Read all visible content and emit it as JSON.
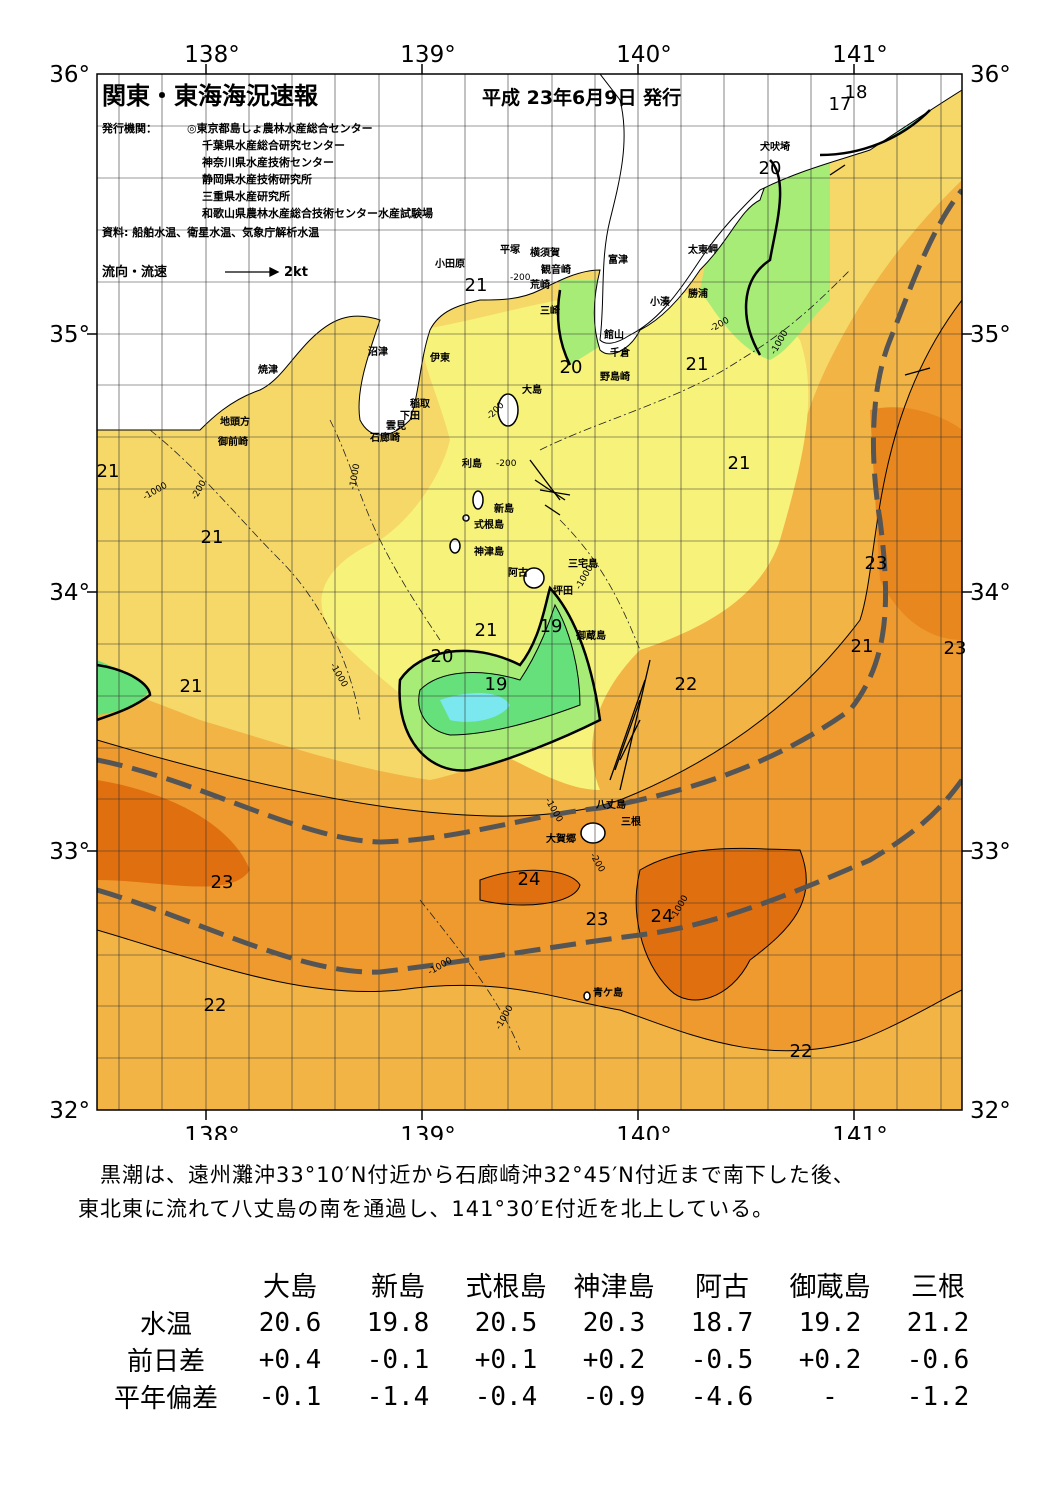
{
  "header": {
    "title": "関東・東海海況速報",
    "date": "平成 23年6月9日 発行",
    "issuer_label": "発行機関：",
    "issuers": [
      "◎東京都島しょ農林水産総合センター",
      "千葉県水産総合研究センター",
      "神奈川県水産技術センター",
      "静岡県水産技術研究所",
      "三重県水産研究所",
      "和歌山県農林水産総合技術センター水産試験場"
    ],
    "source": "資料: 船舶水温、衛星水温、気象庁解析水温",
    "legend_label": "流向・流速",
    "legend_speed": "2kt"
  },
  "axes": {
    "lon_labels": [
      "138°",
      "139°",
      "140°",
      "141°"
    ],
    "lat_labels": [
      "36°",
      "35°",
      "34°",
      "33°",
      "32°"
    ]
  },
  "places": [
    "犬吠埼",
    "太東岬",
    "勝浦",
    "小湊",
    "富津",
    "館山",
    "千倉",
    "野島崎",
    "横須賀",
    "観音崎",
    "荒崎",
    "三崎",
    "平塚",
    "小田原",
    "沼津",
    "伊東",
    "焼津",
    "稲取",
    "下田",
    "雲見",
    "石廊崎",
    "地頭方",
    "御前崎",
    "大島",
    "利島",
    "新島",
    "式根島",
    "神津島",
    "三宅島",
    "阿古",
    "坪田",
    "御蔵島",
    "八丈島",
    "三根",
    "大賀郷",
    "青ケ島"
  ],
  "isotherm_labels": [
    "18",
    "17",
    "20",
    "21",
    "21",
    "20",
    "21",
    "21",
    "21",
    "21",
    "23",
    "21",
    "23",
    "21",
    "21",
    "19",
    "20",
    "19",
    "22",
    "23",
    "24",
    "23",
    "24",
    "22",
    "22"
  ],
  "depth_labels": [
    "-200",
    "-1000"
  ],
  "colors": {
    "t17": "#7be8f0",
    "t18": "#8cf0c0",
    "t19": "#66e07a",
    "t20": "#a8ec78",
    "t21": "#f7f27a",
    "t21b": "#f5d868",
    "t22": "#f2b445",
    "t23": "#ee9a2e",
    "t24": "#e06f10",
    "land": "#ffffff",
    "kuroshio": "#555555"
  },
  "summary": [
    "黒潮は、遠州灘沖33°10′N付近から石廊崎沖32°45′N付近まで南下した後、",
    "東北東に流れて八丈島の南を通過し、141°30′E付近を北上している。"
  ],
  "table": {
    "columns": [
      "大島",
      "新島",
      "式根島",
      "神津島",
      "阿古",
      "御蔵島",
      "三根"
    ],
    "rows": [
      {
        "label": "水温",
        "values": [
          "20.6",
          "19.8",
          "20.5",
          "20.3",
          "18.7",
          "19.2",
          "21.2"
        ]
      },
      {
        "label": "前日差",
        "values": [
          "+0.4",
          "-0.1",
          "+0.1",
          "+0.2",
          "-0.5",
          "+0.2",
          "-0.6"
        ]
      },
      {
        "label": "平年偏差",
        "values": [
          "-0.1",
          "-1.4",
          "-0.4",
          "-0.9",
          "-4.6",
          "-",
          "-1.2"
        ]
      }
    ]
  }
}
